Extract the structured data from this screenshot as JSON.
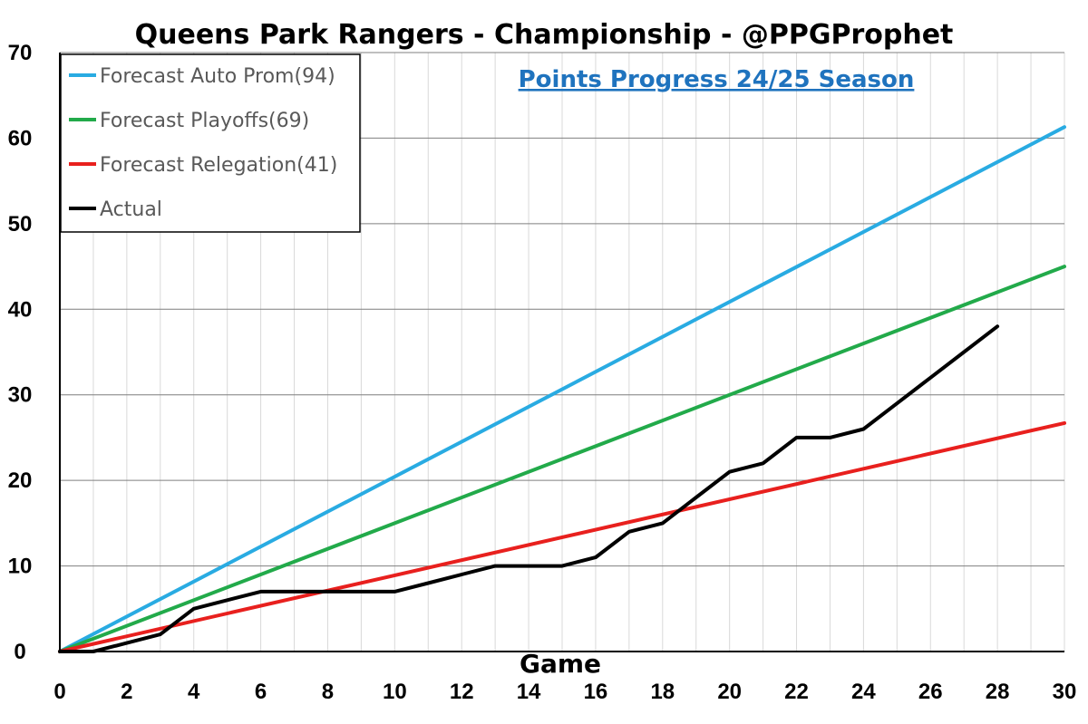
{
  "chart_data": {
    "type": "line",
    "title": "Queens Park Rangers - Championship - @PPGProphet",
    "subtitle": "Points Progress 24/25 Season",
    "xlabel": "Game",
    "ylabel": "",
    "xlim": [
      0,
      30
    ],
    "ylim": [
      0,
      70
    ],
    "x_ticks": [
      0,
      2,
      4,
      6,
      8,
      10,
      12,
      14,
      16,
      18,
      20,
      22,
      24,
      26,
      28,
      30
    ],
    "y_ticks": [
      0,
      10,
      20,
      30,
      40,
      50,
      60,
      70
    ],
    "grid": true,
    "legend_position": "top-left",
    "series": [
      {
        "name": "Forecast Auto Prom(94)",
        "color": "#29ABE2",
        "x": [
          0,
          30
        ],
        "y": [
          0,
          61.3
        ]
      },
      {
        "name": "Forecast Playoffs(69)",
        "color": "#22AA4A",
        "x": [
          0,
          30
        ],
        "y": [
          0,
          45
        ]
      },
      {
        "name": "Forecast Relegation(41)",
        "color": "#E8201E",
        "x": [
          0,
          30
        ],
        "y": [
          0,
          26.7
        ]
      },
      {
        "name": "Actual",
        "color": "#000000",
        "x": [
          0,
          1,
          2,
          3,
          4,
          5,
          6,
          7,
          8,
          9,
          10,
          11,
          12,
          13,
          14,
          15,
          16,
          17,
          18,
          19,
          20,
          21,
          22,
          23,
          24,
          25,
          26,
          27,
          28
        ],
        "y": [
          0,
          0,
          1,
          2,
          5,
          6,
          7,
          7,
          7,
          7,
          7,
          8,
          9,
          10,
          10,
          10,
          11,
          14,
          15,
          18,
          21,
          22,
          25,
          25,
          26,
          29,
          32,
          35,
          38
        ]
      }
    ],
    "subtitle_color": "#1F73BE"
  }
}
